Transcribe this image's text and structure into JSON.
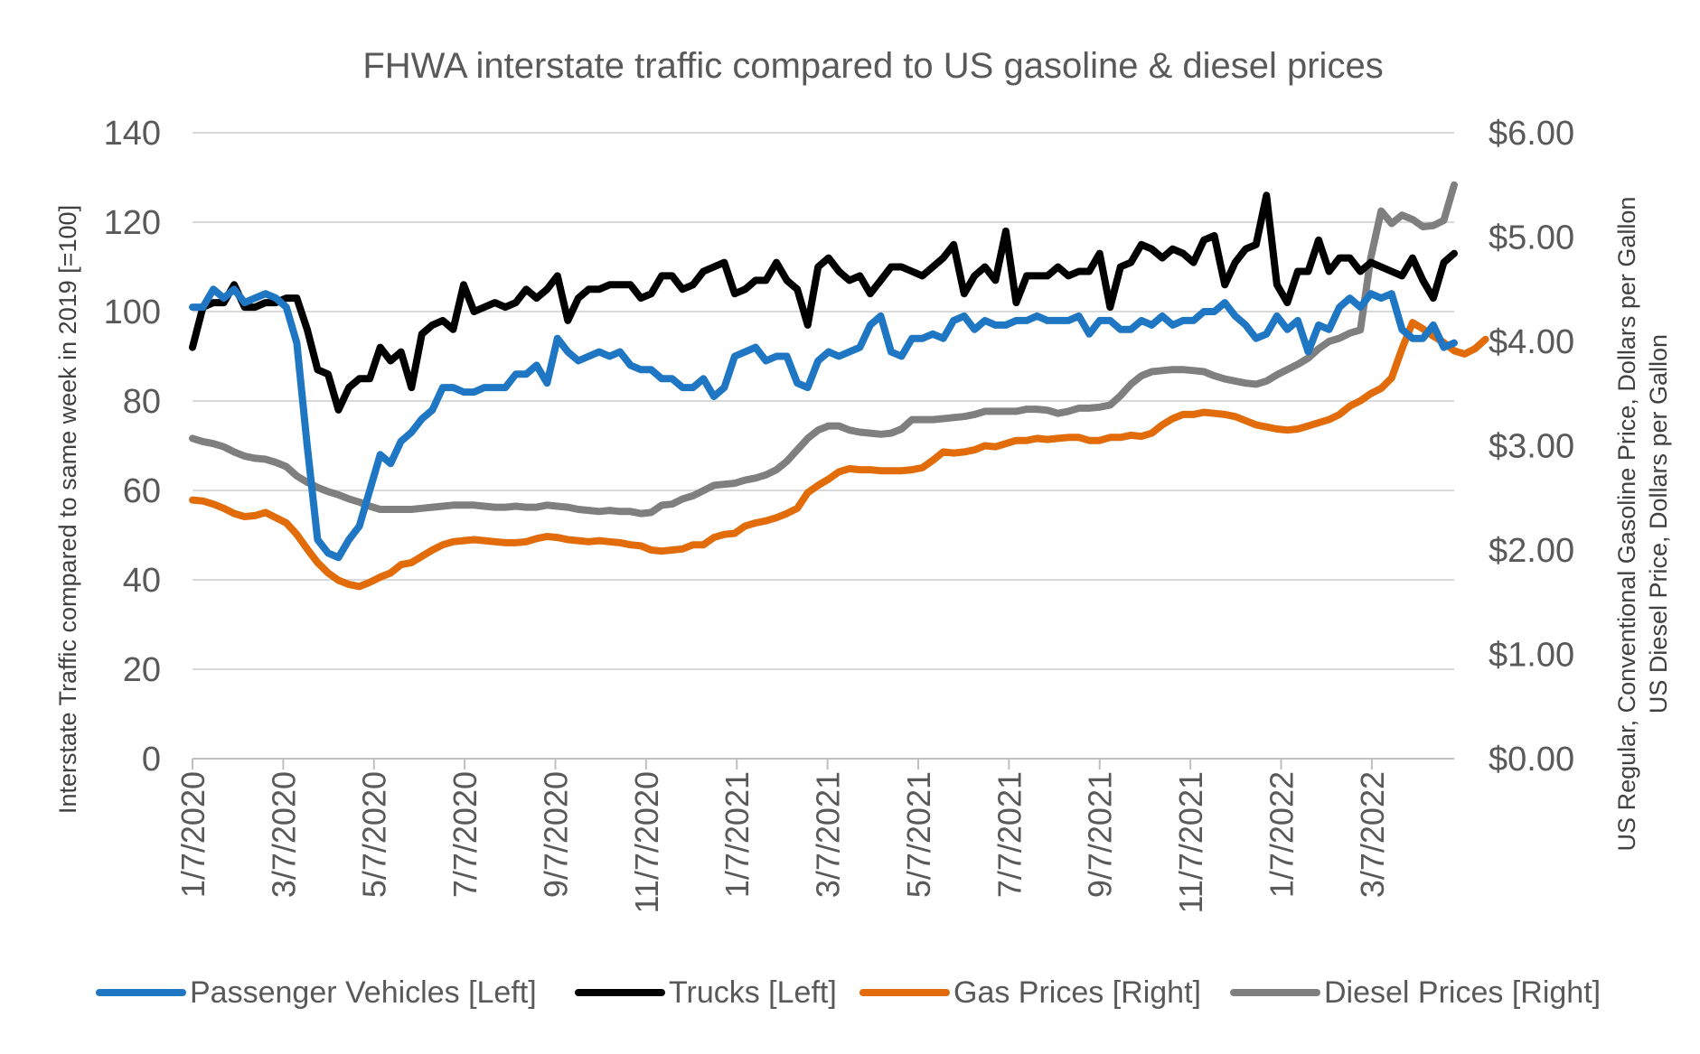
{
  "chart_data": {
    "type": "line",
    "title": "FHWA interstate traffic compared to US gasoline & diesel prices",
    "ylabel_left": "Interstate Traffic compared to same week in 2019 [=100]",
    "ylabel_right_line1": "US Regular, Conventional Gasoline Price, Dollars per Gallon",
    "ylabel_right_line2": "US Diesel Price, Dollars per Gallon",
    "ylim_left": [
      0,
      140
    ],
    "ylim_right": [
      0,
      6
    ],
    "yticks_left": [
      "0",
      "20",
      "40",
      "60",
      "80",
      "100",
      "120",
      "140"
    ],
    "yticks_right": [
      "$0.00",
      "$1.00",
      "$2.00",
      "$3.00",
      "$4.00",
      "$5.00",
      "$6.00"
    ],
    "x_tick_labels": [
      "1/7/2020",
      "3/7/2020",
      "5/7/2020",
      "7/7/2020",
      "9/7/2020",
      "11/7/2020",
      "1/7/2021",
      "3/7/2021",
      "5/7/2021",
      "7/7/2021",
      "9/7/2021",
      "11/7/2021",
      "1/7/2022",
      "3/7/2022"
    ],
    "x_weeks_per_tick": 8.7,
    "legend_position": "bottom",
    "series": [
      {
        "name": "Passenger Vehicles [Left]",
        "axis": "left",
        "color": "#1f77c4",
        "values": [
          101,
          101,
          105,
          103,
          105,
          102,
          103,
          104,
          103,
          101,
          93,
          70,
          49,
          46,
          45,
          49,
          52,
          60,
          68,
          66,
          71,
          73,
          76,
          78,
          83,
          83,
          82,
          82,
          83,
          83,
          83,
          86,
          86,
          88,
          84,
          94,
          91,
          89,
          90,
          91,
          90,
          91,
          88,
          87,
          87,
          85,
          85,
          83,
          83,
          85,
          81,
          83,
          90,
          91,
          92,
          89,
          90,
          90,
          84,
          83,
          89,
          91,
          90,
          91,
          92,
          97,
          99,
          91,
          90,
          94,
          94,
          95,
          94,
          98,
          99,
          96,
          98,
          97,
          97,
          98,
          98,
          99,
          98,
          98,
          98,
          99,
          95,
          98,
          98,
          96,
          96,
          98,
          97,
          99,
          97,
          98,
          98,
          100,
          100,
          102,
          99,
          97,
          94,
          95,
          99,
          96,
          98,
          91,
          97,
          96,
          101,
          103,
          101,
          104,
          103,
          104,
          96,
          94,
          94,
          97,
          92,
          93
        ]
      },
      {
        "name": "Trucks [Left]",
        "axis": "left",
        "color": "#000000",
        "values": [
          92,
          101,
          102,
          102,
          106,
          101,
          101,
          102,
          102,
          103,
          103,
          96,
          87,
          86,
          78,
          83,
          85,
          85,
          92,
          89,
          91,
          83,
          95,
          97,
          98,
          96,
          106,
          100,
          101,
          102,
          101,
          102,
          105,
          103,
          105,
          108,
          98,
          103,
          105,
          105,
          106,
          106,
          106,
          103,
          104,
          108,
          108,
          105,
          106,
          109,
          110,
          111,
          104,
          105,
          107,
          107,
          111,
          107,
          105,
          97,
          110,
          112,
          109,
          107,
          108,
          104,
          107,
          110,
          110,
          109,
          108,
          110,
          112,
          115,
          104,
          108,
          110,
          107,
          118,
          102,
          108,
          108,
          108,
          110,
          108,
          109,
          109,
          113,
          101,
          110,
          111,
          115,
          114,
          112,
          114,
          113,
          111,
          116,
          117,
          106,
          111,
          114,
          115,
          126,
          106,
          102,
          109,
          109,
          116,
          109,
          112,
          112,
          109,
          111,
          110,
          109,
          108,
          112,
          107,
          103,
          111,
          113
        ]
      },
      {
        "name": "Gas Prices [Right]",
        "axis": "right",
        "color": "#e36c0a",
        "values": [
          2.48,
          2.47,
          2.44,
          2.4,
          2.35,
          2.32,
          2.33,
          2.36,
          2.31,
          2.26,
          2.15,
          2.01,
          1.88,
          1.78,
          1.71,
          1.67,
          1.65,
          1.69,
          1.74,
          1.78,
          1.86,
          1.88,
          1.94,
          2.0,
          2.05,
          2.08,
          2.09,
          2.1,
          2.09,
          2.08,
          2.07,
          2.07,
          2.08,
          2.11,
          2.13,
          2.12,
          2.1,
          2.09,
          2.08,
          2.09,
          2.08,
          2.07,
          2.05,
          2.04,
          2.0,
          1.99,
          2.0,
          2.01,
          2.05,
          2.05,
          2.12,
          2.15,
          2.16,
          2.23,
          2.26,
          2.28,
          2.31,
          2.35,
          2.4,
          2.55,
          2.62,
          2.68,
          2.75,
          2.78,
          2.77,
          2.77,
          2.76,
          2.76,
          2.76,
          2.77,
          2.79,
          2.86,
          2.94,
          2.93,
          2.94,
          2.96,
          3.0,
          2.99,
          3.02,
          3.05,
          3.05,
          3.07,
          3.06,
          3.07,
          3.08,
          3.08,
          3.05,
          3.05,
          3.08,
          3.08,
          3.1,
          3.09,
          3.12,
          3.2,
          3.26,
          3.3,
          3.3,
          3.32,
          3.31,
          3.3,
          3.28,
          3.24,
          3.2,
          3.18,
          3.16,
          3.15,
          3.16,
          3.19,
          3.22,
          3.25,
          3.3,
          3.38,
          3.43,
          3.5,
          3.55,
          3.65,
          3.93,
          4.18,
          4.12,
          4.05,
          3.99,
          3.91,
          3.88,
          3.93,
          4.02
        ]
      },
      {
        "name": "Diesel Prices [Right]",
        "axis": "right",
        "color": "#7f7f7f",
        "values": [
          3.07,
          3.04,
          3.02,
          2.99,
          2.94,
          2.9,
          2.88,
          2.87,
          2.84,
          2.8,
          2.71,
          2.65,
          2.6,
          2.56,
          2.53,
          2.49,
          2.46,
          2.42,
          2.39,
          2.39,
          2.39,
          2.39,
          2.4,
          2.41,
          2.42,
          2.43,
          2.43,
          2.43,
          2.42,
          2.41,
          2.41,
          2.42,
          2.41,
          2.41,
          2.43,
          2.42,
          2.41,
          2.39,
          2.38,
          2.37,
          2.38,
          2.37,
          2.37,
          2.35,
          2.36,
          2.43,
          2.44,
          2.49,
          2.52,
          2.57,
          2.62,
          2.63,
          2.64,
          2.67,
          2.69,
          2.72,
          2.77,
          2.85,
          2.96,
          3.07,
          3.15,
          3.19,
          3.19,
          3.15,
          3.13,
          3.12,
          3.11,
          3.12,
          3.16,
          3.25,
          3.25,
          3.25,
          3.26,
          3.27,
          3.28,
          3.3,
          3.33,
          3.33,
          3.33,
          3.33,
          3.35,
          3.35,
          3.34,
          3.31,
          3.33,
          3.36,
          3.36,
          3.37,
          3.39,
          3.48,
          3.59,
          3.67,
          3.71,
          3.72,
          3.73,
          3.73,
          3.72,
          3.71,
          3.67,
          3.64,
          3.62,
          3.6,
          3.59,
          3.62,
          3.68,
          3.73,
          3.78,
          3.84,
          3.93,
          4.0,
          4.03,
          4.08,
          4.11,
          4.8,
          5.25,
          5.13,
          5.21,
          5.17,
          5.1,
          5.11,
          5.16,
          5.5
        ]
      }
    ]
  }
}
